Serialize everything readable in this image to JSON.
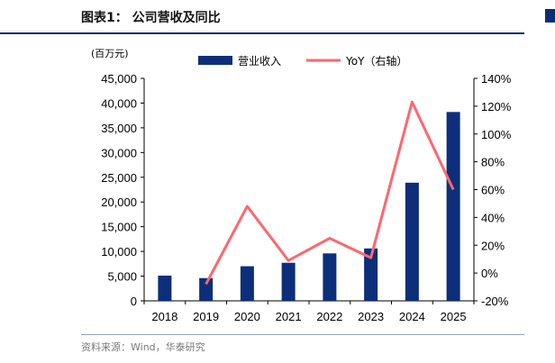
{
  "figure": {
    "title": "图表1：  公司营收及同比",
    "source": "资料来源：Wind，华泰研究"
  },
  "colors": {
    "bar": "#0d2f7a",
    "line": "#ff6670",
    "rule": "#0b2d73"
  },
  "chart_data": {
    "type": "bar",
    "categories": [
      "2018",
      "2019",
      "2020",
      "2021",
      "2022",
      "2023",
      "2024",
      "2025"
    ],
    "unit_label": "(百万元)",
    "series": [
      {
        "name": "营业收入",
        "type": "bar",
        "axis": "left",
        "values": [
          5100,
          4600,
          7000,
          7700,
          9600,
          10600,
          23900,
          38200
        ]
      },
      {
        "name": "YoY（右轴）",
        "type": "line",
        "axis": "right",
        "values": [
          null,
          -8,
          48,
          9,
          25,
          11,
          123,
          60
        ]
      }
    ],
    "left_axis": {
      "min": 0,
      "max": 45000,
      "ticks": [
        "0",
        "5,000",
        "10,000",
        "15,000",
        "20,000",
        "25,000",
        "30,000",
        "35,000",
        "40,000",
        "45,000"
      ]
    },
    "right_axis": {
      "min": -20,
      "max": 140,
      "ticks": [
        "-20%",
        "0%",
        "20%",
        "40%",
        "60%",
        "80%",
        "100%",
        "120%",
        "140%"
      ]
    },
    "legend_position": "top",
    "grid": false
  }
}
